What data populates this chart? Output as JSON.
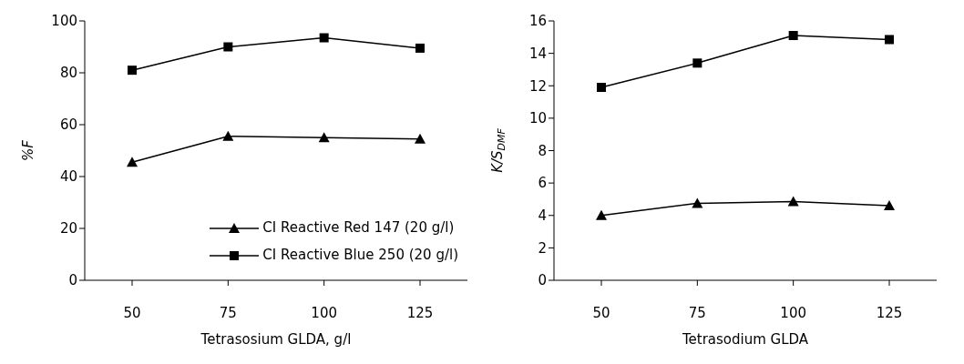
{
  "chart_data": [
    {
      "type": "line",
      "xlabel": "Tetrasosium GLDA, g/l",
      "ylabel": "%F",
      "categories": [
        "50",
        "75",
        "100",
        "125"
      ],
      "ylim": [
        0,
        100
      ],
      "yticks": [
        0,
        20,
        40,
        60,
        80,
        100
      ],
      "grid": false,
      "legend": "bottom right",
      "series": [
        {
          "name": "CI Reactive Red 147 (20 g/l)",
          "color": "#000000",
          "marker": "triangle",
          "values": [
            45.5,
            55.5,
            55,
            54.5
          ]
        },
        {
          "name": "CI Reactive Blue 250 (20 g/l)",
          "color": "#000000",
          "marker": "square",
          "values": [
            81,
            90,
            93.5,
            89.5
          ]
        }
      ]
    },
    {
      "type": "line",
      "xlabel": "Tetrasodium GLDA",
      "ylabel": "K/S$_{DMF}$",
      "categories": [
        "50",
        "75",
        "100",
        "125"
      ],
      "ylim": [
        0,
        16
      ],
      "yticks": [
        0,
        2,
        4,
        6,
        8,
        10,
        12,
        14,
        16
      ],
      "grid": false,
      "legend": false,
      "series": [
        {
          "color": "#000000",
          "marker": "triangle",
          "values": [
            4.0,
            4.75,
            4.85,
            4.6
          ]
        },
        {
          "color": "#000000",
          "marker": "square",
          "values": [
            11.9,
            13.4,
            15.1,
            14.85
          ]
        }
      ]
    }
  ]
}
